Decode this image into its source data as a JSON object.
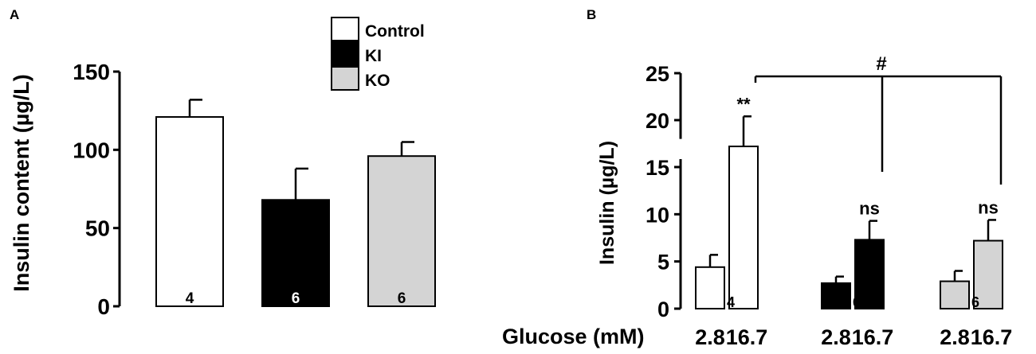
{
  "chart_data": [
    {
      "panel_label": "A",
      "type": "bar",
      "ylabel": "Insulin content (µg/L)",
      "ylim": [
        0,
        150
      ],
      "yticks": [
        0,
        50,
        100,
        150
      ],
      "categories": [
        "Control",
        "KI",
        "KO"
      ],
      "values": [
        121,
        68,
        96
      ],
      "errors": [
        11,
        20,
        9
      ],
      "n_labels": [
        "4",
        "6",
        "6"
      ],
      "legend": {
        "placement": "top-center",
        "entries": [
          {
            "name": "Control",
            "color": "#ffffff"
          },
          {
            "name": "KI",
            "color": "#000000"
          },
          {
            "name": "KO",
            "color": "#d4d4d4"
          }
        ]
      }
    },
    {
      "panel_label": "B",
      "type": "bar",
      "ylabel": "Insulin (µg/L)",
      "ylim": [
        0,
        25
      ],
      "y_axis_break": [
        15,
        18
      ],
      "yticks": [
        0,
        5,
        10,
        15,
        20,
        25
      ],
      "xlabel": "Glucose (mM)",
      "groups": [
        {
          "name": "Control",
          "color": "#ffffff",
          "x": [
            "2.8",
            "16.7"
          ],
          "values": [
            4.4,
            17.2
          ],
          "errors": [
            1.3,
            3.2
          ],
          "n_label": "4",
          "significance": [
            null,
            "**"
          ]
        },
        {
          "name": "KI",
          "color": "#000000",
          "x": [
            "2.8",
            "16.7"
          ],
          "values": [
            2.7,
            7.3
          ],
          "errors": [
            0.7,
            2.0
          ],
          "n_label": "6",
          "significance": [
            null,
            "ns"
          ]
        },
        {
          "name": "KO",
          "color": "#d4d4d4",
          "x": [
            "2.8",
            "16.7"
          ],
          "values": [
            2.9,
            7.2
          ],
          "errors": [
            1.1,
            2.2
          ],
          "n_label": "6",
          "significance": [
            null,
            "ns"
          ]
        }
      ],
      "bracket_label": "#"
    }
  ]
}
